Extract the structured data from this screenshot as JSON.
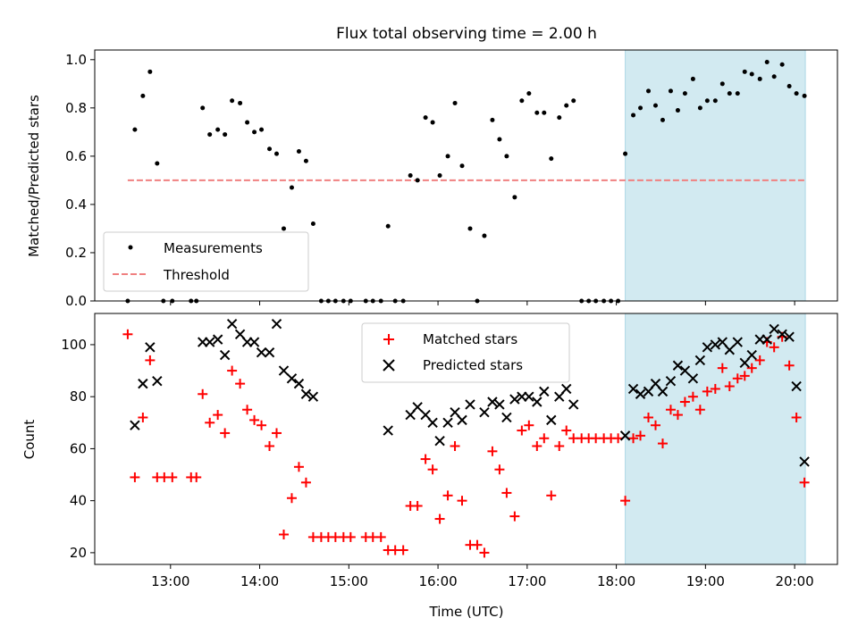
{
  "chart_data": [
    {
      "type": "scatter",
      "title": "Flux total observing time = 2.00 h",
      "ylabel": "Matched/Predicted stars",
      "xlabel": "",
      "ylim": [
        0,
        1.04
      ],
      "xlim": [
        12.15,
        20.48
      ],
      "yticks": [
        0.0,
        0.2,
        0.4,
        0.6,
        0.8,
        1.0
      ],
      "ytick_labels": [
        "0.0",
        "0.2",
        "0.4",
        "0.6",
        "0.8",
        "1.0"
      ],
      "x_unit": "hours UTC",
      "legend": {
        "position": "lower-left",
        "entries": [
          "Measurements",
          "Threshold"
        ]
      },
      "threshold": {
        "name": "Threshold",
        "y": 0.5,
        "x_range": [
          12.52,
          20.12
        ],
        "color": "#f08080"
      },
      "highlight_span": {
        "x_range": [
          18.1,
          20.12
        ],
        "color": "#add8e6"
      },
      "series": [
        {
          "name": "Measurements",
          "color": "#000000",
          "points": [
            [
              12.52,
              0.0
            ],
            [
              12.6,
              0.71
            ],
            [
              12.69,
              0.85
            ],
            [
              12.77,
              0.95
            ],
            [
              12.85,
              0.57
            ],
            [
              12.92,
              0.0
            ],
            [
              13.02,
              0.0
            ],
            [
              13.23,
              0.0
            ],
            [
              13.29,
              0.0
            ],
            [
              13.36,
              0.8
            ],
            [
              13.44,
              0.69
            ],
            [
              13.53,
              0.71
            ],
            [
              13.61,
              0.69
            ],
            [
              13.69,
              0.83
            ],
            [
              13.78,
              0.82
            ],
            [
              13.86,
              0.74
            ],
            [
              13.94,
              0.7
            ],
            [
              14.02,
              0.71
            ],
            [
              14.11,
              0.63
            ],
            [
              14.19,
              0.61
            ],
            [
              14.27,
              0.3
            ],
            [
              14.36,
              0.47
            ],
            [
              14.44,
              0.62
            ],
            [
              14.52,
              0.58
            ],
            [
              14.6,
              0.32
            ],
            [
              14.69,
              0.0
            ],
            [
              14.77,
              0.0
            ],
            [
              14.85,
              0.0
            ],
            [
              14.94,
              0.0
            ],
            [
              15.02,
              0.0
            ],
            [
              15.19,
              0.0
            ],
            [
              15.27,
              0.0
            ],
            [
              15.36,
              0.0
            ],
            [
              15.44,
              0.31
            ],
            [
              15.52,
              0.0
            ],
            [
              15.61,
              0.0
            ],
            [
              15.69,
              0.52
            ],
            [
              15.77,
              0.5
            ],
            [
              15.86,
              0.76
            ],
            [
              15.94,
              0.74
            ],
            [
              16.02,
              0.52
            ],
            [
              16.11,
              0.6
            ],
            [
              16.19,
              0.82
            ],
            [
              16.27,
              0.56
            ],
            [
              16.36,
              0.3
            ],
            [
              16.44,
              0.0
            ],
            [
              16.52,
              0.27
            ],
            [
              16.61,
              0.75
            ],
            [
              16.69,
              0.67
            ],
            [
              16.77,
              0.6
            ],
            [
              16.86,
              0.43
            ],
            [
              16.94,
              0.83
            ],
            [
              17.02,
              0.86
            ],
            [
              17.11,
              0.78
            ],
            [
              17.19,
              0.78
            ],
            [
              17.27,
              0.59
            ],
            [
              17.36,
              0.76
            ],
            [
              17.44,
              0.81
            ],
            [
              17.52,
              0.83
            ],
            [
              17.61,
              0.0
            ],
            [
              17.69,
              0.0
            ],
            [
              17.77,
              0.0
            ],
            [
              17.86,
              0.0
            ],
            [
              17.94,
              0.0
            ],
            [
              18.02,
              0.0
            ],
            [
              18.1,
              0.61
            ],
            [
              18.19,
              0.77
            ],
            [
              18.27,
              0.8
            ],
            [
              18.36,
              0.87
            ],
            [
              18.44,
              0.81
            ],
            [
              18.52,
              0.75
            ],
            [
              18.61,
              0.87
            ],
            [
              18.69,
              0.79
            ],
            [
              18.77,
              0.86
            ],
            [
              18.86,
              0.92
            ],
            [
              18.94,
              0.8
            ],
            [
              19.02,
              0.83
            ],
            [
              19.11,
              0.83
            ],
            [
              19.19,
              0.9
            ],
            [
              19.27,
              0.86
            ],
            [
              19.36,
              0.86
            ],
            [
              19.44,
              0.95
            ],
            [
              19.52,
              0.94
            ],
            [
              19.61,
              0.92
            ],
            [
              19.69,
              0.99
            ],
            [
              19.77,
              0.93
            ],
            [
              19.86,
              0.98
            ],
            [
              19.94,
              0.89
            ],
            [
              20.02,
              0.86
            ],
            [
              20.11,
              0.85
            ]
          ]
        }
      ]
    },
    {
      "type": "scatter",
      "title": "",
      "xlabel": "Time (UTC)",
      "ylabel": "Count",
      "ylim": [
        15.5,
        112
      ],
      "xlim": [
        12.15,
        20.48
      ],
      "yticks": [
        20,
        40,
        60,
        80,
        100
      ],
      "ytick_labels": [
        "20",
        "40",
        "60",
        "80",
        "100"
      ],
      "xticks": [
        13,
        14,
        15,
        16,
        17,
        18,
        19,
        20
      ],
      "xtick_labels": [
        "13:00",
        "14:00",
        "15:00",
        "16:00",
        "17:00",
        "18:00",
        "19:00",
        "20:00"
      ],
      "x_unit": "hours UTC",
      "legend": {
        "position": "upper-center",
        "entries": [
          "Matched stars",
          "Predicted stars"
        ]
      },
      "highlight_span": {
        "x_range": [
          18.1,
          20.12
        ],
        "color": "#add8e6"
      },
      "series": [
        {
          "name": "Matched stars",
          "marker": "plus",
          "color": "#ff0000",
          "points": [
            [
              12.52,
              104
            ],
            [
              12.6,
              49
            ],
            [
              12.69,
              72
            ],
            [
              12.77,
              94
            ],
            [
              12.85,
              49
            ],
            [
              12.93,
              49
            ],
            [
              13.02,
              49
            ],
            [
              13.23,
              49
            ],
            [
              13.29,
              49
            ],
            [
              13.36,
              81
            ],
            [
              13.44,
              70
            ],
            [
              13.53,
              73
            ],
            [
              13.61,
              66
            ],
            [
              13.69,
              90
            ],
            [
              13.78,
              85
            ],
            [
              13.86,
              75
            ],
            [
              13.94,
              71
            ],
            [
              14.02,
              69
            ],
            [
              14.11,
              61
            ],
            [
              14.19,
              66
            ],
            [
              14.27,
              27
            ],
            [
              14.36,
              41
            ],
            [
              14.44,
              53
            ],
            [
              14.52,
              47
            ],
            [
              14.6,
              26
            ],
            [
              14.69,
              26
            ],
            [
              14.77,
              26
            ],
            [
              14.85,
              26
            ],
            [
              14.94,
              26
            ],
            [
              15.02,
              26
            ],
            [
              15.19,
              26
            ],
            [
              15.27,
              26
            ],
            [
              15.36,
              26
            ],
            [
              15.44,
              21
            ],
            [
              15.52,
              21
            ],
            [
              15.61,
              21
            ],
            [
              15.69,
              38
            ],
            [
              15.77,
              38
            ],
            [
              15.86,
              56
            ],
            [
              15.94,
              52
            ],
            [
              16.02,
              33
            ],
            [
              16.11,
              42
            ],
            [
              16.19,
              61
            ],
            [
              16.27,
              40
            ],
            [
              16.36,
              23
            ],
            [
              16.44,
              23
            ],
            [
              16.52,
              20
            ],
            [
              16.61,
              59
            ],
            [
              16.69,
              52
            ],
            [
              16.77,
              43
            ],
            [
              16.86,
              34
            ],
            [
              16.94,
              67
            ],
            [
              17.02,
              69
            ],
            [
              17.11,
              61
            ],
            [
              17.19,
              64
            ],
            [
              17.27,
              42
            ],
            [
              17.36,
              61
            ],
            [
              17.44,
              67
            ],
            [
              17.52,
              64
            ],
            [
              17.61,
              64
            ],
            [
              17.69,
              64
            ],
            [
              17.77,
              64
            ],
            [
              17.86,
              64
            ],
            [
              17.94,
              64
            ],
            [
              18.02,
              64
            ],
            [
              18.1,
              40
            ],
            [
              18.19,
              64
            ],
            [
              18.27,
              65
            ],
            [
              18.36,
              72
            ],
            [
              18.44,
              69
            ],
            [
              18.52,
              62
            ],
            [
              18.61,
              75
            ],
            [
              18.69,
              73
            ],
            [
              18.77,
              78
            ],
            [
              18.86,
              80
            ],
            [
              18.94,
              75
            ],
            [
              19.02,
              82
            ],
            [
              19.11,
              83
            ],
            [
              19.19,
              91
            ],
            [
              19.27,
              84
            ],
            [
              19.36,
              87
            ],
            [
              19.44,
              88
            ],
            [
              19.52,
              91
            ],
            [
              19.61,
              94
            ],
            [
              19.69,
              101
            ],
            [
              19.77,
              99
            ],
            [
              19.86,
              103
            ],
            [
              19.94,
              92
            ],
            [
              20.02,
              72
            ],
            [
              20.11,
              47
            ]
          ]
        },
        {
          "name": "Predicted stars",
          "marker": "x",
          "color": "#000000",
          "points": [
            [
              12.6,
              69
            ],
            [
              12.69,
              85
            ],
            [
              12.77,
              99
            ],
            [
              12.85,
              86
            ],
            [
              13.36,
              101
            ],
            [
              13.44,
              101
            ],
            [
              13.53,
              102
            ],
            [
              13.61,
              96
            ],
            [
              13.69,
              108
            ],
            [
              13.78,
              104
            ],
            [
              13.86,
              101
            ],
            [
              13.94,
              101
            ],
            [
              14.02,
              97
            ],
            [
              14.11,
              97
            ],
            [
              14.19,
              108
            ],
            [
              14.27,
              90
            ],
            [
              14.36,
              87
            ],
            [
              14.44,
              85
            ],
            [
              14.52,
              81
            ],
            [
              14.6,
              80
            ],
            [
              15.44,
              67
            ],
            [
              15.69,
              73
            ],
            [
              15.77,
              76
            ],
            [
              15.86,
              73
            ],
            [
              15.94,
              70
            ],
            [
              16.02,
              63
            ],
            [
              16.11,
              70
            ],
            [
              16.19,
              74
            ],
            [
              16.27,
              71
            ],
            [
              16.36,
              77
            ],
            [
              16.52,
              74
            ],
            [
              16.61,
              78
            ],
            [
              16.69,
              77
            ],
            [
              16.77,
              72
            ],
            [
              16.86,
              79
            ],
            [
              16.94,
              80
            ],
            [
              17.02,
              80
            ],
            [
              17.11,
              78
            ],
            [
              17.19,
              82
            ],
            [
              17.27,
              71
            ],
            [
              17.36,
              80
            ],
            [
              17.44,
              83
            ],
            [
              17.52,
              77
            ],
            [
              18.1,
              65
            ],
            [
              18.19,
              83
            ],
            [
              18.27,
              81
            ],
            [
              18.36,
              82
            ],
            [
              18.44,
              85
            ],
            [
              18.52,
              82
            ],
            [
              18.61,
              86
            ],
            [
              18.69,
              92
            ],
            [
              18.77,
              90
            ],
            [
              18.86,
              87
            ],
            [
              18.94,
              94
            ],
            [
              19.02,
              99
            ],
            [
              19.11,
              100
            ],
            [
              19.19,
              101
            ],
            [
              19.27,
              98
            ],
            [
              19.36,
              101
            ],
            [
              19.44,
              93
            ],
            [
              19.52,
              96
            ],
            [
              19.61,
              102
            ],
            [
              19.69,
              102
            ],
            [
              19.77,
              106
            ],
            [
              19.86,
              104
            ],
            [
              19.94,
              103
            ],
            [
              20.02,
              84
            ],
            [
              20.11,
              55
            ]
          ]
        }
      ]
    }
  ]
}
